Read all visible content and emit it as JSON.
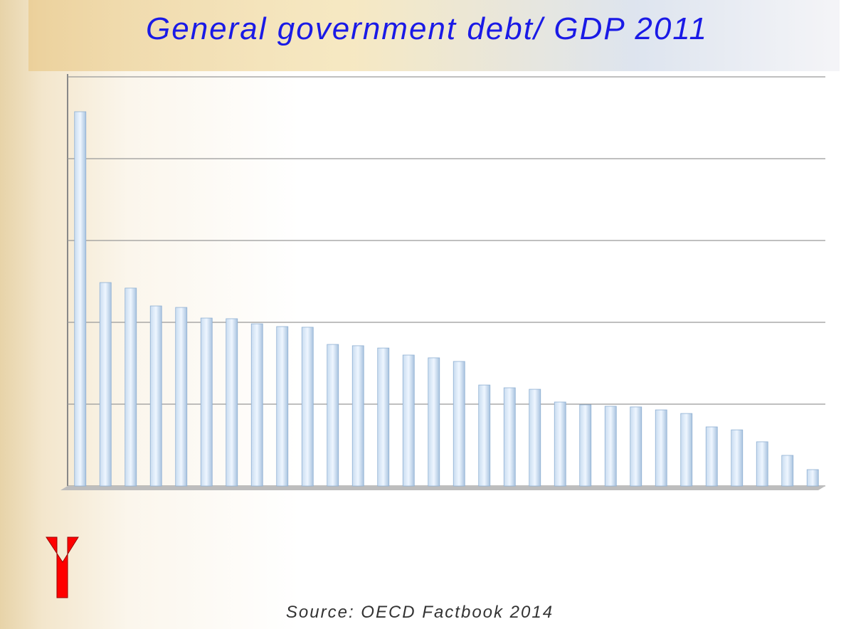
{
  "chart_data": {
    "type": "bar",
    "title": "General government debt/ GDP 2011",
    "source": "Source: OECD Factbook 2014",
    "categories": [
      null,
      null,
      null,
      null,
      null,
      null,
      null,
      null,
      null,
      null,
      null,
      null,
      null,
      null,
      null,
      null,
      null,
      null,
      null,
      null,
      null,
      null,
      null,
      null,
      null,
      null,
      null,
      null,
      null,
      null
    ],
    "values": [
      228.7,
      124.3,
      120.9,
      110,
      109.1,
      102.6,
      102.2,
      99.1,
      97.4,
      97,
      86.5,
      85.7,
      84.3,
      80,
      78.3,
      76.1,
      61.7,
      60,
      59.1,
      51.3,
      49.6,
      48.7,
      48.3,
      46.5,
      44.3,
      36.1,
      34.3,
      27,
      18.7,
      10
    ],
    "color": "#dbeaf8",
    "ylim": [
      0,
      250
    ],
    "yticks": [
      0,
      50,
      100,
      150,
      200,
      250
    ],
    "grid": true
  }
}
